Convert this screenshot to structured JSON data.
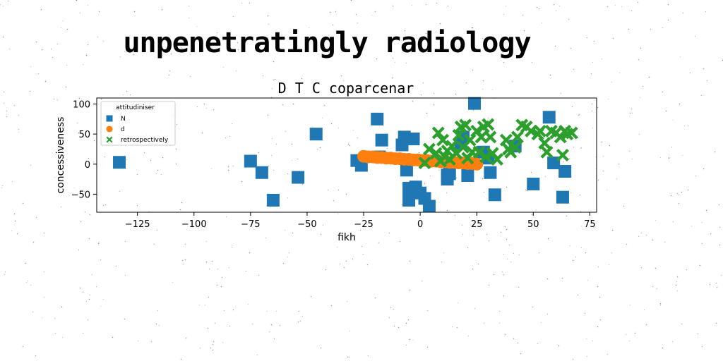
{
  "page": {
    "title": "unpenetratingly radiology"
  },
  "chart_data": {
    "type": "scatter",
    "title": "D T C coparcenar",
    "xlabel": "fikh",
    "ylabel": "concessiveness",
    "xlim": [
      -143,
      78
    ],
    "ylim": [
      -80,
      110
    ],
    "x_ticks": [
      -125,
      -100,
      -75,
      -50,
      -25,
      0,
      25,
      50,
      75
    ],
    "y_ticks": [
      -50,
      0,
      50,
      100
    ],
    "grid": false,
    "legend": {
      "title": "attitudiniser",
      "placement": "upper-left"
    },
    "series": [
      {
        "name": "N",
        "marker": "square",
        "color": "#1f77b4",
        "points": [
          [
            -133,
            3
          ],
          [
            -75,
            5
          ],
          [
            -70,
            -14
          ],
          [
            -65,
            -60
          ],
          [
            -54,
            -22
          ],
          [
            -46,
            50
          ],
          [
            -28,
            6
          ],
          [
            -26,
            -2
          ],
          [
            -19,
            75
          ],
          [
            -18,
            12
          ],
          [
            -17,
            40
          ],
          [
            -8,
            32
          ],
          [
            -7,
            45
          ],
          [
            -6,
            -10
          ],
          [
            -5,
            -40
          ],
          [
            -5,
            -60
          ],
          [
            -3,
            42
          ],
          [
            -2,
            -38
          ],
          [
            0,
            -48
          ],
          [
            2,
            -57
          ],
          [
            4,
            -70
          ],
          [
            12,
            -18
          ],
          [
            12,
            -25
          ],
          [
            13,
            -16
          ],
          [
            18,
            35
          ],
          [
            19,
            45
          ],
          [
            21,
            -19
          ],
          [
            24,
            101
          ],
          [
            28,
            20
          ],
          [
            30,
            10
          ],
          [
            31,
            -14
          ],
          [
            33,
            -51
          ],
          [
            42,
            30
          ],
          [
            50,
            -33
          ],
          [
            57,
            78
          ],
          [
            59,
            2
          ],
          [
            63,
            -55
          ],
          [
            64,
            -12
          ]
        ]
      },
      {
        "name": "d",
        "marker": "circle",
        "color": "#ff7f0e",
        "points": [
          [
            -25,
            13
          ],
          [
            -23,
            12
          ],
          [
            -21,
            12
          ],
          [
            -19,
            11
          ],
          [
            -17,
            11
          ],
          [
            -15,
            10
          ],
          [
            -13,
            10
          ],
          [
            -11,
            9
          ],
          [
            -9,
            9
          ],
          [
            -7,
            8
          ],
          [
            -5,
            8
          ],
          [
            -3,
            7
          ],
          [
            -1,
            7
          ],
          [
            1,
            6
          ],
          [
            3,
            6
          ],
          [
            5,
            5
          ],
          [
            7,
            5
          ],
          [
            9,
            4
          ],
          [
            11,
            4
          ],
          [
            13,
            3
          ],
          [
            15,
            3
          ],
          [
            17,
            2
          ],
          [
            19,
            2
          ],
          [
            21,
            1
          ],
          [
            23,
            1
          ],
          [
            25,
            0
          ]
        ]
      },
      {
        "name": "retrospectively",
        "marker": "x",
        "color": "#2ca02c",
        "points": [
          [
            2,
            2
          ],
          [
            4,
            25
          ],
          [
            7,
            18
          ],
          [
            8,
            52
          ],
          [
            9,
            5
          ],
          [
            10,
            40
          ],
          [
            11,
            12
          ],
          [
            12,
            22
          ],
          [
            13,
            8
          ],
          [
            14,
            30
          ],
          [
            16,
            18
          ],
          [
            17,
            48
          ],
          [
            18,
            62
          ],
          [
            19,
            28
          ],
          [
            20,
            65
          ],
          [
            21,
            10
          ],
          [
            22,
            40
          ],
          [
            23,
            20
          ],
          [
            25,
            55
          ],
          [
            26,
            20
          ],
          [
            27,
            45
          ],
          [
            28,
            62
          ],
          [
            29,
            12
          ],
          [
            30,
            66
          ],
          [
            31,
            45
          ],
          [
            32,
            18
          ],
          [
            34,
            8
          ],
          [
            38,
            40
          ],
          [
            39,
            25
          ],
          [
            40,
            20
          ],
          [
            42,
            28
          ],
          [
            43,
            45
          ],
          [
            45,
            65
          ],
          [
            47,
            62
          ],
          [
            49,
            55
          ],
          [
            52,
            50
          ],
          [
            53,
            55
          ],
          [
            55,
            35
          ],
          [
            56,
            20
          ],
          [
            58,
            55
          ],
          [
            60,
            52
          ],
          [
            62,
            45
          ],
          [
            63,
            15
          ],
          [
            64,
            55
          ],
          [
            65,
            50
          ],
          [
            67,
            52
          ]
        ]
      }
    ]
  }
}
